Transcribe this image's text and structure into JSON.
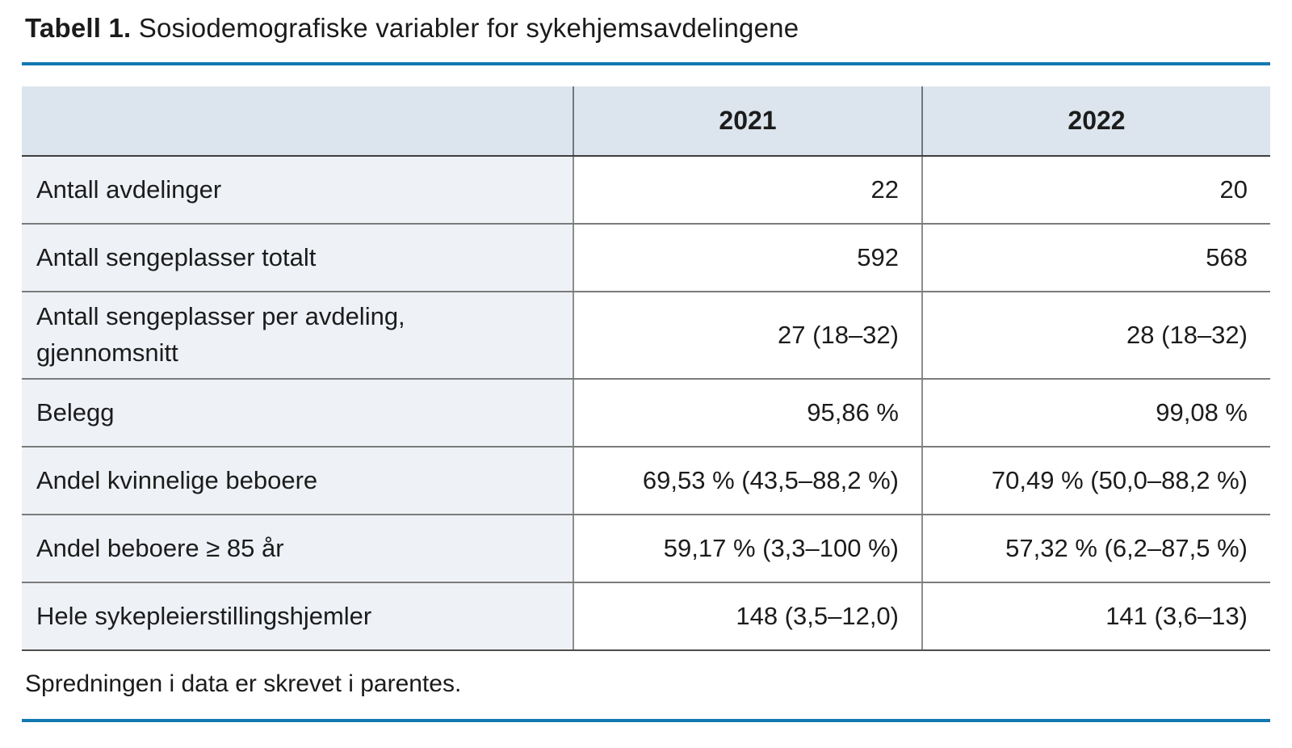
{
  "page": {
    "title_bold": "Tabell 1.",
    "title_rest": " Sosiodemografiske variabler for sykehjemsavdelingene",
    "footnote": "Spredningen i data er skrevet i parentes.",
    "accent_color": "#1378b2",
    "header_bg_color": "#dce5ed",
    "label_column_bg_color": "#eef1f6"
  },
  "table": {
    "column_headers": {
      "label": "",
      "y2021": "2021",
      "y2022": "2022"
    },
    "rows": [
      {
        "label": "Antall avdelinger",
        "v2021": "22",
        "v2022": "20"
      },
      {
        "label": "Antall sengeplasser totalt",
        "v2021": "592",
        "v2022": "568"
      },
      {
        "label": "Antall sengeplasser per avdeling, gjennomsnitt",
        "v2021": "27 (18–32)",
        "v2022": "28 (18–32)"
      },
      {
        "label": "Belegg",
        "v2021": "95,86 %",
        "v2022": "99,08 %"
      },
      {
        "label": "Andel kvinnelige beboere",
        "v2021": "69,53 % (43,5–88,2 %)",
        "v2022": "70,49 % (50,0–88,2 %)"
      },
      {
        "label": "Andel beboere ≥ 85 år",
        "v2021": "59,17 % (3,3–100 %)",
        "v2022": "57,32 % (6,2–87,5 %)"
      },
      {
        "label": "Hele sykepleierstillingshjemler",
        "v2021": "148 (3,5–12,0)",
        "v2022": "141 (3,6–13)"
      }
    ]
  }
}
